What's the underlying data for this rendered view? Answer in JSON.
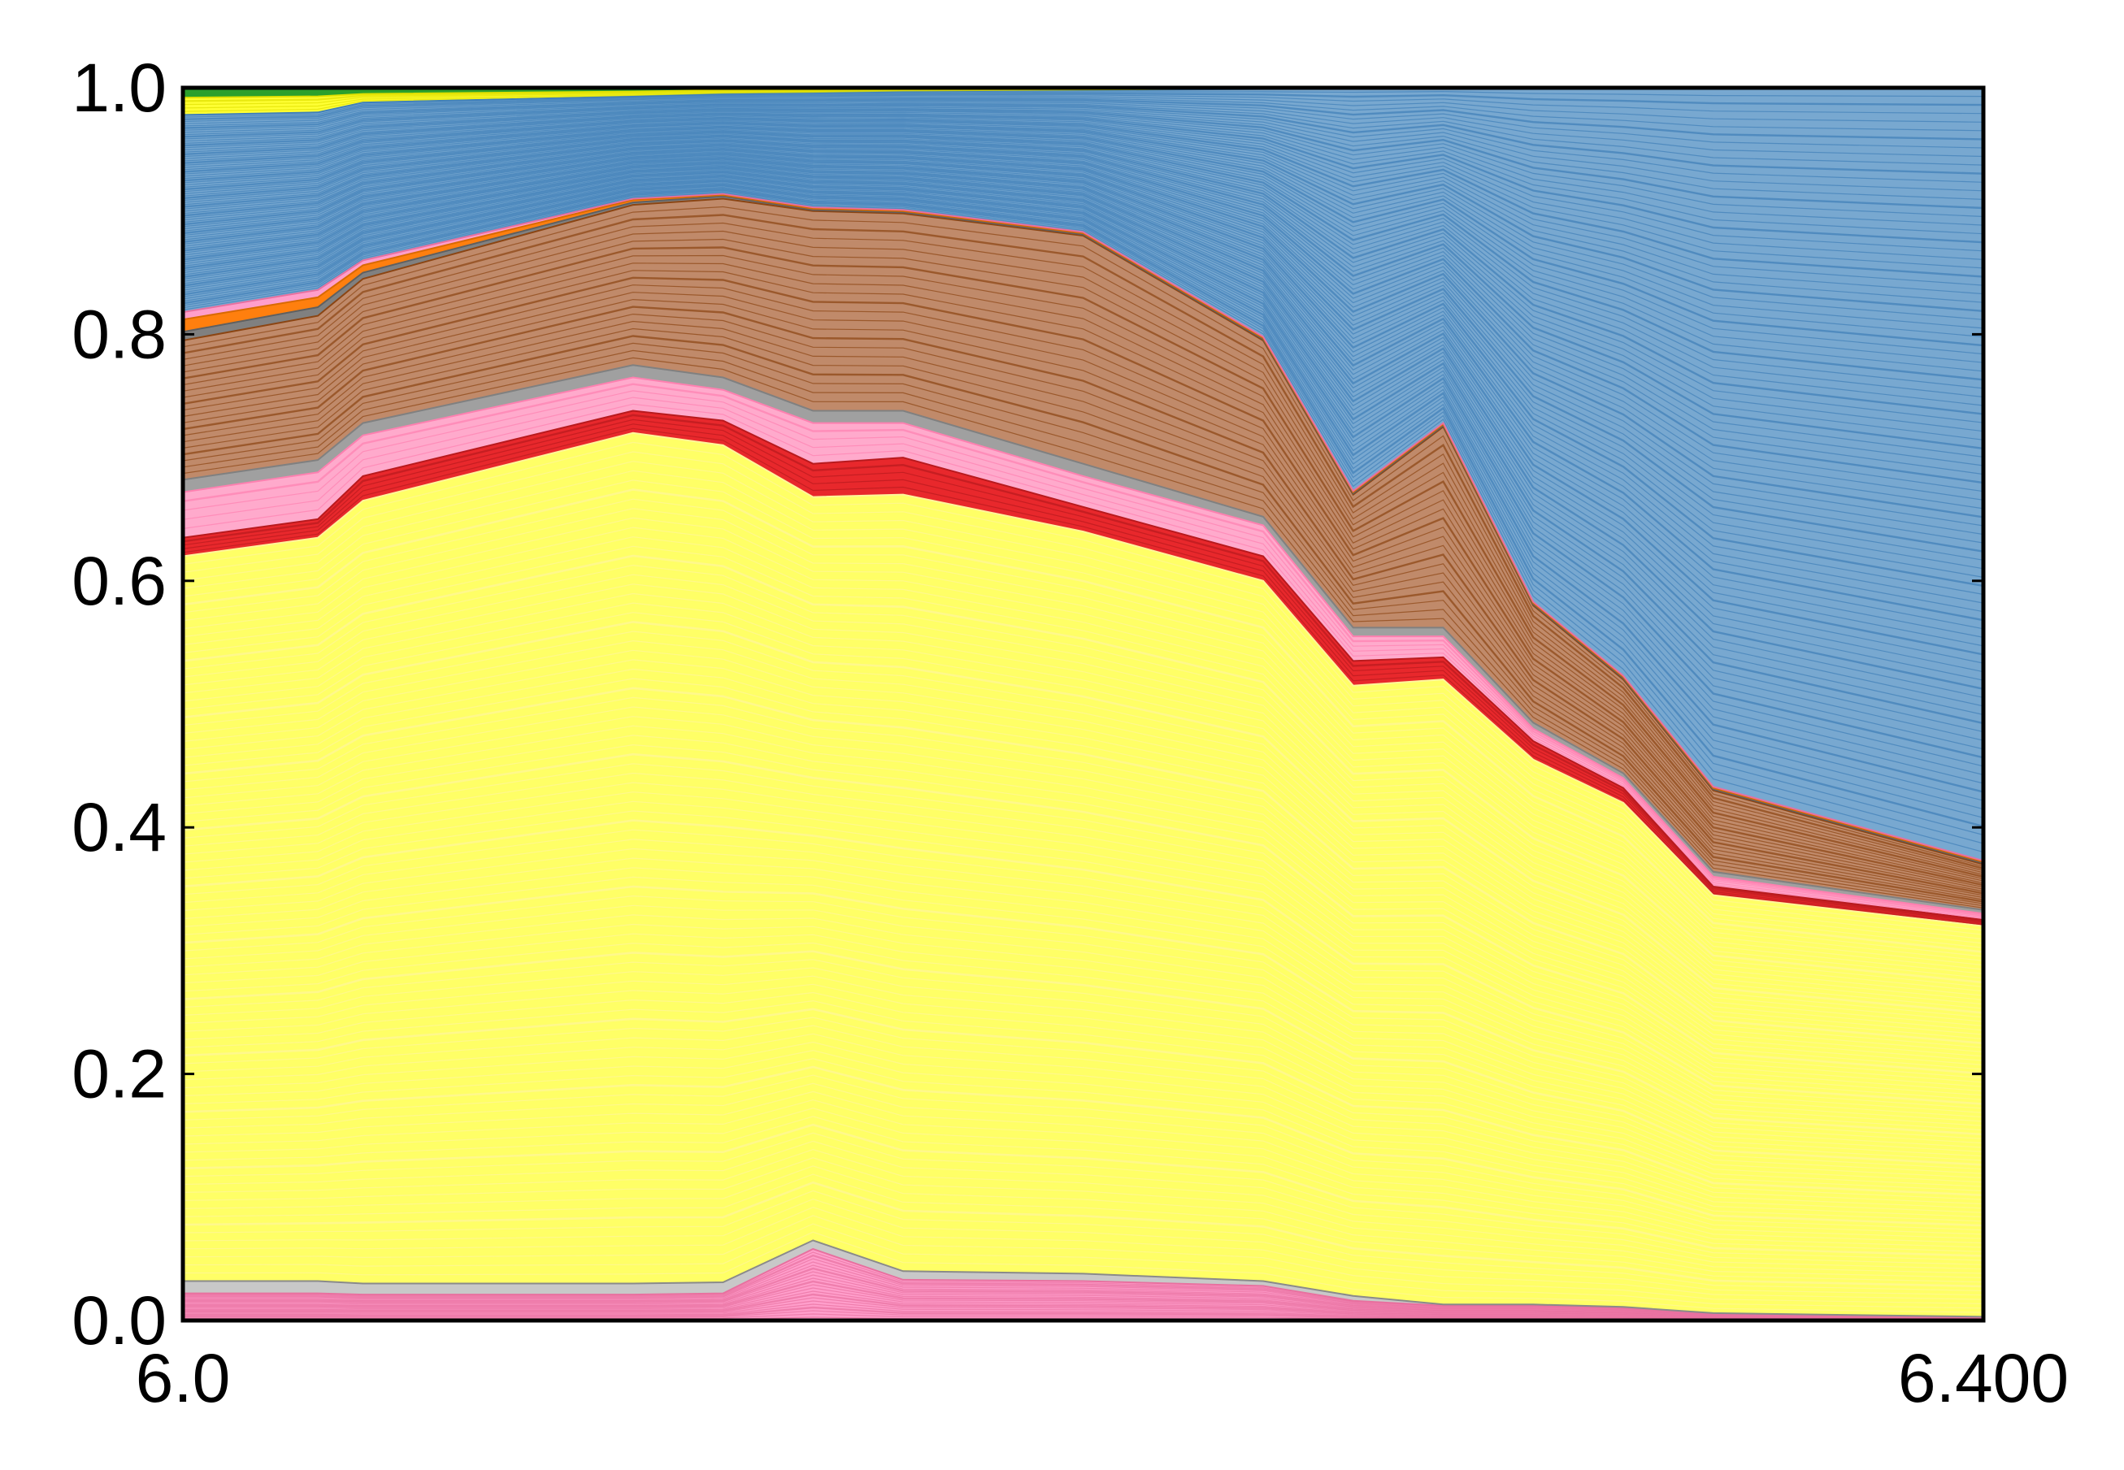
{
  "chart_data": {
    "type": "area",
    "stacked": true,
    "normalized": true,
    "x": [
      6.0,
      6.03,
      6.05,
      6.1,
      6.15,
      6.2,
      6.25,
      6.3,
      6.4
    ],
    "xticks": [
      {
        "value": 6.0,
        "label": "6.0"
      },
      {
        "value": 6.4,
        "label": "6.400"
      }
    ],
    "yticks": [
      {
        "value": 0.0,
        "label": "0.0"
      },
      {
        "value": 0.2,
        "label": "0.2"
      },
      {
        "value": 0.4,
        "label": "0.4"
      },
      {
        "value": 0.6,
        "label": "0.6"
      },
      {
        "value": 0.8,
        "label": "0.8"
      },
      {
        "value": 1.0,
        "label": "1.0"
      }
    ],
    "xlim": [
      6.0,
      6.4
    ],
    "ylim": [
      0.0,
      1.0
    ],
    "grid": false,
    "legend": "none",
    "boundary_x": [
      6.0,
      6.03,
      6.04,
      6.1,
      6.12,
      6.14,
      6.16,
      6.2,
      6.24,
      6.26,
      6.28,
      6.3,
      6.32,
      6.34,
      6.4
    ],
    "series": [
      {
        "color": "#ff9ecb",
        "line": "#e8709f",
        "top": [
          0.022,
          0.022,
          0.021,
          0.021,
          0.022,
          0.058,
          0.033,
          0.032,
          0.028,
          0.016,
          0.012,
          0.012,
          0.01,
          0.005,
          0.002
        ]
      },
      {
        "color": "#c8c8c8",
        "line": "#8a8a8a",
        "top": [
          0.032,
          0.032,
          0.03,
          0.03,
          0.031,
          0.065,
          0.04,
          0.038,
          0.032,
          0.02,
          0.013,
          0.013,
          0.011,
          0.006,
          0.003
        ]
      },
      {
        "color": "#ffff66",
        "line": "#fff59a",
        "top": [
          0.62,
          0.635,
          0.665,
          0.72,
          0.71,
          0.668,
          0.67,
          0.64,
          0.6,
          0.515,
          0.52,
          0.455,
          0.42,
          0.345,
          0.32
        ]
      },
      {
        "color": "#e8282c",
        "line": "#b81a1e",
        "top": [
          0.635,
          0.65,
          0.685,
          0.738,
          0.73,
          0.695,
          0.7,
          0.66,
          0.62,
          0.535,
          0.538,
          0.47,
          0.432,
          0.352,
          0.325
        ]
      },
      {
        "color": "#ffaacc",
        "line": "#ff80b0",
        "top": [
          0.672,
          0.688,
          0.718,
          0.765,
          0.755,
          0.728,
          0.728,
          0.685,
          0.645,
          0.555,
          0.555,
          0.48,
          0.44,
          0.36,
          0.33
        ]
      },
      {
        "color": "#a0a0a0",
        "line": "#808080",
        "top": [
          0.682,
          0.698,
          0.728,
          0.775,
          0.765,
          0.738,
          0.738,
          0.695,
          0.652,
          0.562,
          0.562,
          0.485,
          0.444,
          0.364,
          0.333
        ]
      },
      {
        "color": "#c08a6a",
        "line": "#8b4513",
        "top": [
          0.795,
          0.815,
          0.845,
          0.905,
          0.91,
          0.9,
          0.898,
          0.88,
          0.795,
          0.67,
          0.725,
          0.58,
          0.52,
          0.43,
          0.37
        ]
      },
      {
        "color": "#808080",
        "line": "#606060",
        "top": [
          0.802,
          0.822,
          0.85,
          0.907,
          0.912,
          0.901,
          0.899,
          0.881,
          0.796,
          0.671,
          0.726,
          0.581,
          0.521,
          0.431,
          0.371
        ]
      },
      {
        "color": "#ff7f0e",
        "line": "#d96a00",
        "top": [
          0.812,
          0.83,
          0.856,
          0.909,
          0.913,
          0.902,
          0.9,
          0.882,
          0.797,
          0.672,
          0.727,
          0.582,
          0.522,
          0.432,
          0.372
        ]
      },
      {
        "color": "#ff9ecb",
        "line": "#e8709f",
        "top": [
          0.818,
          0.836,
          0.86,
          0.91,
          0.914,
          0.903,
          0.901,
          0.883,
          0.798,
          0.673,
          0.728,
          0.583,
          0.523,
          0.433,
          0.373
        ]
      },
      {
        "color": "#78a8d0",
        "line": "#3f7fb8",
        "top": [
          0.978,
          0.98,
          0.988,
          0.993,
          0.995,
          0.996,
          0.997,
          0.998,
          0.999,
          1.0,
          1.0,
          1.0,
          1.0,
          1.0,
          1.0
        ]
      },
      {
        "color": "#ffff33",
        "line": "#e0e000",
        "top": [
          0.992,
          0.993,
          0.995,
          0.997,
          0.998,
          0.998,
          0.999,
          0.999,
          1.0,
          1.0,
          1.0,
          1.0,
          1.0,
          1.0,
          1.0
        ]
      },
      {
        "color": "#2ca02c",
        "line": "#228b22",
        "top": [
          1.0,
          1.0,
          1.0,
          1.0,
          1.0,
          1.0,
          1.0,
          1.0,
          1.0,
          1.0,
          1.0,
          1.0,
          1.0,
          1.0,
          1.0
        ]
      }
    ]
  }
}
